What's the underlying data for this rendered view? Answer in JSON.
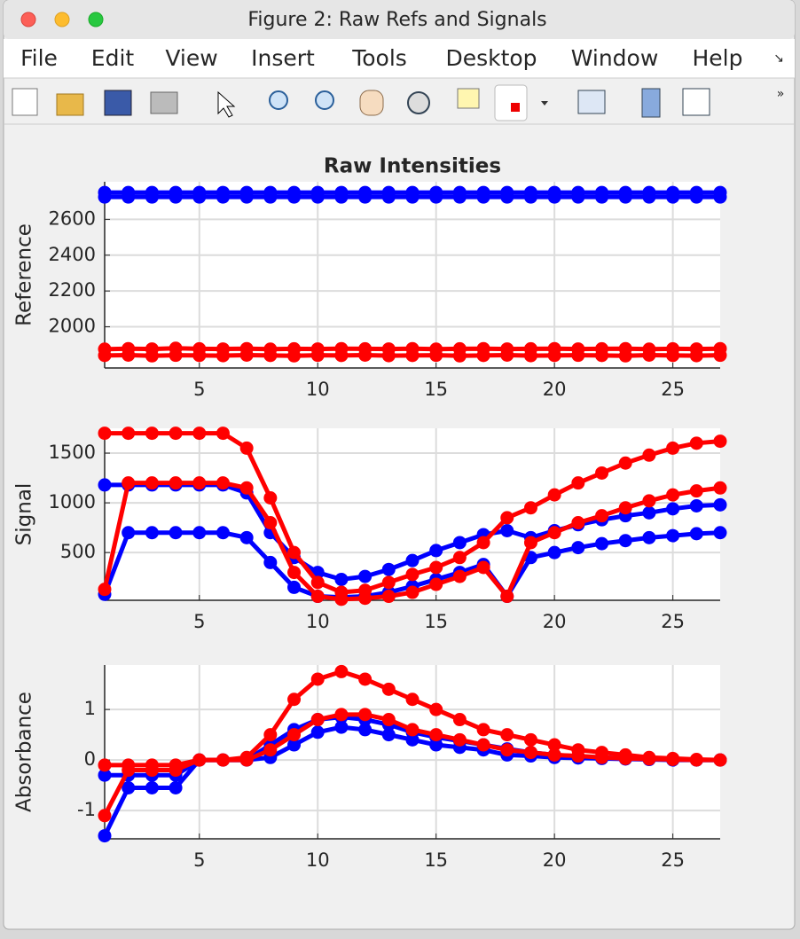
{
  "window": {
    "title": "Figure 2: Raw Refs and Signals",
    "menu": [
      "File",
      "Edit",
      "View",
      "Insert",
      "Tools",
      "Desktop",
      "Window",
      "Help"
    ]
  },
  "chart_data": [
    {
      "type": "line",
      "title": "Raw Intensities",
      "y_label": "Reference",
      "x": [
        1,
        2,
        3,
        4,
        5,
        6,
        7,
        8,
        9,
        10,
        11,
        12,
        13,
        14,
        15,
        16,
        17,
        18,
        19,
        20,
        21,
        22,
        23,
        24,
        25,
        26,
        27
      ],
      "xlim": [
        1,
        27
      ],
      "xticks": [
        5,
        10,
        15,
        20,
        25
      ],
      "ylim": [
        1770,
        2810
      ],
      "yticks": [
        2000,
        2200,
        2400,
        2600
      ],
      "grid": true,
      "series": [
        {
          "color": "#0000ff",
          "values": [
            2750,
            2750,
            2750,
            2750,
            2750,
            2750,
            2750,
            2750,
            2750,
            2750,
            2750,
            2750,
            2750,
            2750,
            2750,
            2750,
            2750,
            2750,
            2750,
            2750,
            2750,
            2750,
            2750,
            2750,
            2750,
            2750,
            2750
          ]
        },
        {
          "color": "#0000ff",
          "values": [
            2725,
            2725,
            2725,
            2725,
            2725,
            2725,
            2725,
            2725,
            2725,
            2725,
            2725,
            2725,
            2725,
            2725,
            2725,
            2725,
            2725,
            2725,
            2725,
            2725,
            2725,
            2725,
            2725,
            2725,
            2725,
            2725,
            2725
          ]
        },
        {
          "color": "#ff0000",
          "values": [
            1875,
            1878,
            1876,
            1880,
            1877,
            1876,
            1878,
            1875,
            1877,
            1876,
            1878,
            1877,
            1876,
            1878,
            1875,
            1877,
            1878,
            1876,
            1877,
            1878,
            1876,
            1877,
            1878,
            1875,
            1877,
            1876,
            1878
          ]
        },
        {
          "color": "#ff0000",
          "values": [
            1840,
            1842,
            1838,
            1841,
            1840,
            1839,
            1842,
            1840,
            1838,
            1841,
            1840,
            1842,
            1839,
            1840,
            1841,
            1838,
            1840,
            1842,
            1839,
            1840,
            1841,
            1840,
            1838,
            1842,
            1840,
            1839,
            1841
          ]
        }
      ]
    },
    {
      "type": "line",
      "y_label": "Signal",
      "x": [
        1,
        2,
        3,
        4,
        5,
        6,
        7,
        8,
        9,
        10,
        11,
        12,
        13,
        14,
        15,
        16,
        17,
        18,
        19,
        20,
        21,
        22,
        23,
        24,
        25,
        26,
        27
      ],
      "xlim": [
        1,
        27
      ],
      "xticks": [
        5,
        10,
        15,
        20,
        25
      ],
      "ylim": [
        20,
        1750
      ],
      "yticks": [
        500,
        1000,
        1500
      ],
      "grid": true,
      "series": [
        {
          "color": "#0000ff",
          "values": [
            1180,
            1180,
            1180,
            1180,
            1180,
            1180,
            1100,
            700,
            450,
            300,
            230,
            260,
            330,
            420,
            520,
            600,
            680,
            720,
            650,
            720,
            780,
            830,
            870,
            900,
            940,
            970,
            980
          ]
        },
        {
          "color": "#0000ff",
          "values": [
            80,
            700,
            700,
            700,
            700,
            700,
            650,
            400,
            150,
            60,
            50,
            60,
            100,
            160,
            230,
            300,
            380,
            60,
            450,
            500,
            550,
            590,
            620,
            650,
            670,
            690,
            700
          ]
        },
        {
          "color": "#ff0000",
          "values": [
            1700,
            1700,
            1700,
            1700,
            1700,
            1700,
            1550,
            1050,
            500,
            200,
            100,
            120,
            200,
            280,
            350,
            450,
            600,
            850,
            950,
            1080,
            1200,
            1300,
            1400,
            1480,
            1550,
            1600,
            1620
          ]
        },
        {
          "color": "#ff0000",
          "values": [
            130,
            1200,
            1200,
            1200,
            1200,
            1200,
            1150,
            800,
            300,
            60,
            30,
            40,
            60,
            100,
            180,
            260,
            350,
            60,
            600,
            700,
            800,
            870,
            950,
            1020,
            1080,
            1120,
            1150
          ]
        }
      ]
    },
    {
      "type": "line",
      "y_label": "Absorbance",
      "x": [
        1,
        2,
        3,
        4,
        5,
        6,
        7,
        8,
        9,
        10,
        11,
        12,
        13,
        14,
        15,
        16,
        17,
        18,
        19,
        20,
        21,
        22,
        23,
        24,
        25,
        26,
        27
      ],
      "xlim": [
        1,
        27
      ],
      "xticks": [
        5,
        10,
        15,
        20,
        25
      ],
      "ylim": [
        -1.56,
        1.88
      ],
      "yticks": [
        -1,
        0,
        1
      ],
      "grid": true,
      "series": [
        {
          "color": "#0000ff",
          "values": [
            -0.3,
            -0.3,
            -0.3,
            -0.3,
            0,
            0,
            0,
            0.3,
            0.6,
            0.8,
            0.85,
            0.8,
            0.7,
            0.55,
            0.45,
            0.38,
            0.3,
            0.22,
            0.15,
            0.1,
            0.07,
            0.05,
            0.03,
            0.02,
            0.01,
            0,
            0
          ]
        },
        {
          "color": "#0000ff",
          "values": [
            -1.5,
            -0.55,
            -0.55,
            -0.55,
            0,
            0,
            0,
            0.05,
            0.3,
            0.55,
            0.65,
            0.6,
            0.5,
            0.4,
            0.3,
            0.25,
            0.2,
            0.1,
            0.08,
            0.05,
            0.04,
            0.03,
            0.02,
            0.01,
            0,
            0,
            0
          ]
        },
        {
          "color": "#ff0000",
          "values": [
            -0.1,
            -0.1,
            -0.1,
            -0.1,
            0,
            0,
            0.05,
            0.5,
            1.2,
            1.6,
            1.75,
            1.6,
            1.4,
            1.2,
            1.0,
            0.8,
            0.6,
            0.5,
            0.4,
            0.3,
            0.2,
            0.15,
            0.1,
            0.05,
            0.03,
            0.01,
            0
          ]
        },
        {
          "color": "#ff0000",
          "values": [
            -1.1,
            -0.2,
            -0.2,
            -0.2,
            0,
            0,
            0,
            0.2,
            0.5,
            0.8,
            0.9,
            0.9,
            0.8,
            0.6,
            0.5,
            0.4,
            0.3,
            0.2,
            0.15,
            0.1,
            0.08,
            0.05,
            0.03,
            0.02,
            0.01,
            0,
            0
          ]
        }
      ]
    }
  ]
}
